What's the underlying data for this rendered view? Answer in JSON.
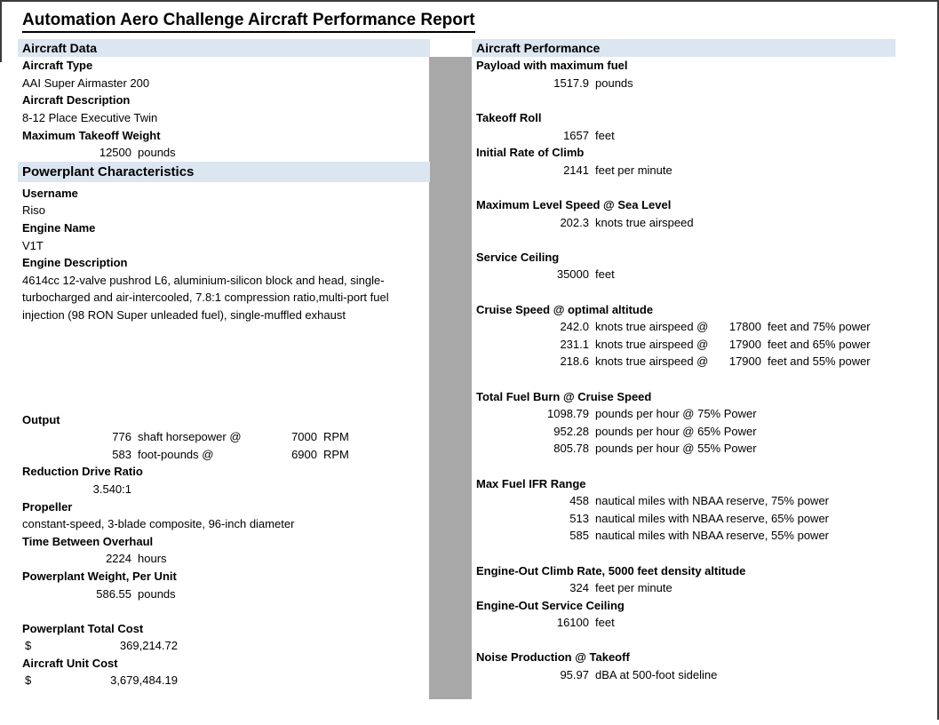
{
  "report": {
    "title": "Automation Aero Challenge Aircraft Performance Report"
  },
  "sections": {
    "aircraft_data": "Aircraft Data",
    "powerplant": "Powerplant Characteristics",
    "performance": "Aircraft Performance"
  },
  "aircraft": {
    "type_label": "Aircraft Type",
    "type": "AAI Super Airmaster 200",
    "description_label": "Aircraft Description",
    "description": "8-12 Place Executive Twin",
    "mtow_label": "Maximum Takeoff Weight",
    "mtow_value": "12500",
    "mtow_unit": "pounds"
  },
  "powerplant": {
    "username_label": "Username",
    "username": "Riso",
    "engine_name_label": "Engine Name",
    "engine_name": "V1T",
    "engine_desc_label": "Engine Description",
    "engine_desc_lines": [
      "4614cc 12-valve pushrod L6, aluminium-silicon block and head, single-",
      "turbocharged and air-intercooled, 7.8:1 compression ratio,multi-port fuel",
      "injection (98 RON Super unleaded fuel), single-muffled exhaust"
    ],
    "output_label": "Output",
    "power": {
      "value": "776",
      "unit": "shaft horsepower @",
      "rpm": "7000",
      "rpm_unit": "RPM"
    },
    "torque": {
      "value": "583",
      "unit": "foot-pounds @",
      "rpm": "6900",
      "rpm_unit": "RPM"
    },
    "reduction_label": "Reduction Drive Ratio",
    "reduction": "3.540:1",
    "propeller_label": "Propeller",
    "propeller": "constant-speed, 3-blade composite, 96-inch diameter",
    "tbo_label": "Time Between Overhaul",
    "tbo_value": "2224",
    "tbo_unit": "hours",
    "weight_label": "Powerplant Weight, Per Unit",
    "weight_value": "586.55",
    "weight_unit": "pounds",
    "total_cost_label": "Powerplant Total Cost",
    "currency": "$",
    "total_cost": "369,214.72",
    "unit_cost_label": "Aircraft Unit Cost",
    "unit_cost": "3,679,484.19"
  },
  "performance": {
    "payload_label": "Payload with maximum fuel",
    "payload_value": "1517.9",
    "payload_unit": "pounds",
    "takeoff_label": "Takeoff Roll",
    "takeoff_value": "1657",
    "takeoff_unit": "feet",
    "climb_label": "Initial Rate of Climb",
    "climb_value": "2141",
    "climb_unit": "feet per minute",
    "max_speed_label": "Maximum Level Speed @ Sea Level",
    "max_speed_value": "202.3",
    "max_speed_unit": "knots true airspeed",
    "ceiling_label": "Service Ceiling",
    "ceiling_value": "35000",
    "ceiling_unit": "feet",
    "cruise_label": "Cruise Speed @ optimal altitude",
    "cruise": [
      {
        "speed": "242.0",
        "speed_unit": "knots true airspeed @",
        "alt": "17800",
        "alt_unit": "feet and 75% power"
      },
      {
        "speed": "231.1",
        "speed_unit": "knots true airspeed @",
        "alt": "17900",
        "alt_unit": "feet and 65% power"
      },
      {
        "speed": "218.6",
        "speed_unit": "knots true airspeed @",
        "alt": "17900",
        "alt_unit": "feet and 55% power"
      }
    ],
    "fuel_burn_label": "Total Fuel Burn @ Cruise Speed",
    "fuel_burn": [
      {
        "value": "1098.79",
        "unit": "pounds per hour @ 75% Power"
      },
      {
        "value": "952.28",
        "unit": "pounds per hour @ 65% Power"
      },
      {
        "value": "805.78",
        "unit": "pounds per hour @ 55% Power"
      }
    ],
    "range_label": "Max Fuel IFR Range",
    "range": [
      {
        "value": "458",
        "unit": "nautical miles with NBAA reserve, 75% power"
      },
      {
        "value": "513",
        "unit": "nautical miles with NBAA reserve, 65% power"
      },
      {
        "value": "585",
        "unit": "nautical miles with NBAA reserve, 55% power"
      }
    ],
    "eo_climb_label": "Engine-Out Climb Rate, 5000 feet density altitude",
    "eo_climb_value": "324",
    "eo_climb_unit": "feet per minute",
    "eo_ceiling_label": "Engine-Out Service Ceiling",
    "eo_ceiling_value": "16100",
    "eo_ceiling_unit": "feet",
    "noise_label": "Noise Production @ Takeoff",
    "noise_value": "95.97",
    "noise_unit": "dBA at 500-foot sideline"
  }
}
